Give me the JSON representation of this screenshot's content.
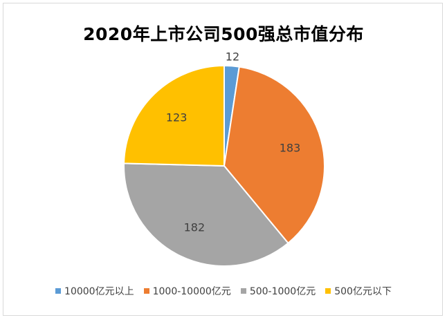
{
  "chart_data": {
    "type": "pie",
    "title": "2020年上市公司500强总市值分布",
    "categories": [
      "10000亿元以上",
      "1000-10000亿元",
      "500-1000亿元",
      "500亿元以下"
    ],
    "values": [
      12,
      183,
      182,
      123
    ],
    "data_labels": [
      "12",
      "183",
      "182",
      "123"
    ],
    "colors": [
      "#5b9bd5",
      "#ed7d31",
      "#a5a5a5",
      "#ffc000"
    ],
    "legend_position": "bottom",
    "start_angle": "12 o'clock, clockwise"
  }
}
